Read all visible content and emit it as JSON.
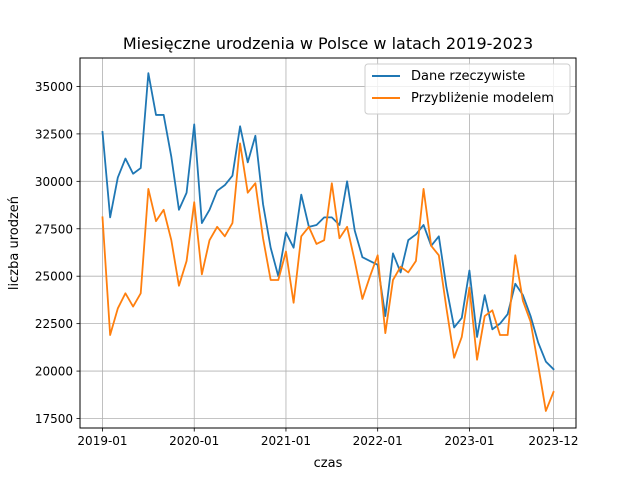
{
  "chart_data": {
    "type": "line",
    "title": "Miesięczne urodzenia w Polsce w latach 2019-2023",
    "xlabel": "czas",
    "ylabel": "liczba urodzeń",
    "x": [
      "2019-01",
      "2019-02",
      "2019-03",
      "2019-04",
      "2019-05",
      "2019-06",
      "2019-07",
      "2019-08",
      "2019-09",
      "2019-10",
      "2019-11",
      "2019-12",
      "2020-01",
      "2020-02",
      "2020-03",
      "2020-04",
      "2020-05",
      "2020-06",
      "2020-07",
      "2020-08",
      "2020-09",
      "2020-10",
      "2020-11",
      "2020-12",
      "2021-01",
      "2021-02",
      "2021-03",
      "2021-04",
      "2021-05",
      "2021-06",
      "2021-07",
      "2021-08",
      "2021-09",
      "2021-10",
      "2021-11",
      "2021-12",
      "2022-01",
      "2022-02",
      "2022-03",
      "2022-04",
      "2022-05",
      "2022-06",
      "2022-07",
      "2022-08",
      "2022-09",
      "2022-10",
      "2022-11",
      "2022-12",
      "2023-01",
      "2023-02",
      "2023-03",
      "2023-04",
      "2023-05",
      "2023-06",
      "2023-07",
      "2023-08",
      "2023-09",
      "2023-10",
      "2023-11",
      "2023-12"
    ],
    "x_ticks": [
      "2019-01",
      "2020-01",
      "2021-01",
      "2022-01",
      "2023-01",
      "2023-12"
    ],
    "y_ticks": [
      17500,
      20000,
      22500,
      25000,
      27500,
      30000,
      32500,
      35000
    ],
    "y_tick_labels": [
      "17500",
      "20000",
      "22500",
      "25000",
      "27500",
      "30000",
      "32500",
      "35000"
    ],
    "ylim": [
      17000,
      36500
    ],
    "grid": true,
    "legend_position": "top-right",
    "series": [
      {
        "name": "Dane rzeczywiste",
        "color": "#1f77b4",
        "values": [
          32600,
          28100,
          30200,
          31200,
          30400,
          30700,
          35700,
          33500,
          33500,
          31300,
          28500,
          29400,
          33000,
          27800,
          28500,
          29500,
          29800,
          30300,
          32900,
          31000,
          32400,
          28800,
          26500,
          25000,
          27300,
          26500,
          29300,
          27600,
          27700,
          28100,
          28100,
          27700,
          30000,
          27400,
          26000,
          25800,
          25600,
          22900,
          26200,
          25200,
          26900,
          27200,
          27700,
          26600,
          27100,
          24400,
          22300,
          22800,
          25300,
          21800,
          24000,
          22200,
          22500,
          23000,
          24600,
          24000,
          22900,
          21500,
          20500,
          20100
        ]
      },
      {
        "name": "Przybliżenie modelem",
        "color": "#ff7f0e",
        "values": [
          28100,
          21900,
          23300,
          24100,
          23400,
          24100,
          29600,
          27900,
          28500,
          26900,
          24500,
          25800,
          28900,
          25100,
          26900,
          27600,
          27100,
          27800,
          32000,
          29400,
          29900,
          27000,
          24800,
          24800,
          26300,
          23600,
          27100,
          27600,
          26700,
          26900,
          29900,
          27000,
          27600,
          25800,
          23800,
          25000,
          26100,
          22000,
          24800,
          25500,
          25200,
          25800,
          29600,
          26600,
          26100,
          23300,
          20700,
          21800,
          24400,
          20600,
          22900,
          23200,
          21900,
          21900,
          26100,
          23700,
          22600,
          20300,
          17900,
          18900
        ]
      }
    ]
  }
}
